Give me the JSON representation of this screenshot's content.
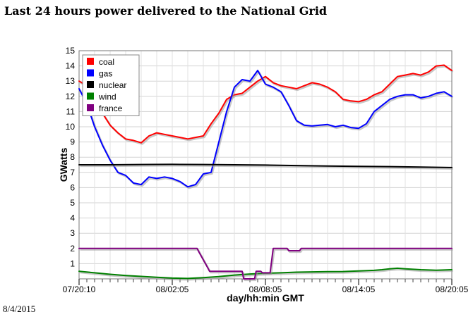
{
  "page": {
    "title": "Last 24 hours power delivered to the National Grid",
    "date": "8/4/2015"
  },
  "chart_data": {
    "type": "line",
    "title": "Last 24 hours power delivered to the National Grid",
    "xlabel": "day/hh:min GMT",
    "ylabel": "GWatts",
    "xlim": [
      0,
      24
    ],
    "ylim": [
      0,
      15
    ],
    "x_ticks": [
      {
        "x": 0,
        "label": "07/20:10"
      },
      {
        "x": 6,
        "label": "08/02:05"
      },
      {
        "x": 12,
        "label": "08/08:05"
      },
      {
        "x": 18,
        "label": "08/14:05"
      },
      {
        "x": 24,
        "label": "08/20:05"
      }
    ],
    "y_ticks": [
      1,
      2,
      3,
      4,
      5,
      6,
      7,
      8,
      9,
      10,
      11,
      12,
      13,
      14,
      15
    ],
    "grid": true,
    "legend_position": "top-left",
    "series": [
      {
        "name": "coal",
        "color": "#ff0000",
        "x": [
          0,
          0.5,
          1,
          1.5,
          2,
          2.5,
          3,
          3.5,
          4,
          4.5,
          5,
          5.5,
          6,
          6.5,
          7,
          7.5,
          8,
          8.5,
          9,
          9.5,
          10,
          10.5,
          11,
          11.5,
          12,
          12.5,
          13,
          13.5,
          14,
          14.5,
          15,
          15.5,
          16,
          16.5,
          17,
          17.5,
          18,
          18.5,
          19,
          19.5,
          20,
          20.5,
          21,
          21.5,
          22,
          22.5,
          23,
          23.5,
          24
        ],
        "values": [
          13.0,
          12.7,
          11.9,
          10.9,
          10.1,
          9.6,
          9.2,
          9.1,
          8.95,
          9.4,
          9.6,
          9.5,
          9.4,
          9.3,
          9.2,
          9.3,
          9.4,
          10.2,
          10.9,
          11.8,
          12.1,
          12.2,
          12.6,
          13.0,
          13.3,
          12.9,
          12.7,
          12.6,
          12.5,
          12.7,
          12.9,
          12.8,
          12.6,
          12.3,
          11.8,
          11.7,
          11.65,
          11.8,
          12.1,
          12.3,
          12.8,
          13.3,
          13.4,
          13.5,
          13.4,
          13.6,
          14.0,
          14.05,
          13.7
        ]
      },
      {
        "name": "gas",
        "color": "#0000ff",
        "x": [
          0,
          0.5,
          1,
          1.5,
          2,
          2.5,
          3,
          3.5,
          4,
          4.5,
          5,
          5.5,
          6,
          6.5,
          7,
          7.5,
          8,
          8.5,
          9,
          9.5,
          10,
          10.5,
          11,
          11.5,
          12,
          12.5,
          13,
          13.5,
          14,
          14.5,
          15,
          15.5,
          16,
          16.5,
          17,
          17.5,
          18,
          18.5,
          19,
          19.5,
          20,
          20.5,
          21,
          21.5,
          22,
          22.5,
          23,
          23.5,
          24
        ],
        "values": [
          12.5,
          11.5,
          10.0,
          8.8,
          7.8,
          7.0,
          6.8,
          6.3,
          6.2,
          6.7,
          6.6,
          6.7,
          6.6,
          6.4,
          6.05,
          6.2,
          6.9,
          7.0,
          9.0,
          11.0,
          12.6,
          13.1,
          13.0,
          13.7,
          12.8,
          12.6,
          12.3,
          11.4,
          10.4,
          10.1,
          10.05,
          10.1,
          10.15,
          10.0,
          10.1,
          9.95,
          9.9,
          10.2,
          11.0,
          11.4,
          11.8,
          12.0,
          12.1,
          12.1,
          11.9,
          12.0,
          12.2,
          12.3,
          12.0
        ]
      },
      {
        "name": "nuclear",
        "color": "#000000",
        "x": [
          0,
          2,
          4,
          6,
          8,
          10,
          12,
          14,
          16,
          18,
          20,
          22,
          24
        ],
        "values": [
          7.5,
          7.5,
          7.52,
          7.53,
          7.52,
          7.5,
          7.48,
          7.45,
          7.42,
          7.4,
          7.38,
          7.35,
          7.32
        ]
      },
      {
        "name": "wind",
        "color": "#008000",
        "x": [
          0,
          1,
          2,
          3,
          4,
          5,
          6,
          7,
          8,
          9,
          10,
          11,
          12,
          13,
          14,
          15,
          16,
          17,
          18,
          19,
          19.5,
          20,
          20.5,
          21,
          22,
          23,
          24
        ],
        "values": [
          0.5,
          0.4,
          0.3,
          0.22,
          0.16,
          0.1,
          0.05,
          0.03,
          0.08,
          0.15,
          0.25,
          0.32,
          0.37,
          0.4,
          0.44,
          0.46,
          0.47,
          0.48,
          0.52,
          0.56,
          0.6,
          0.66,
          0.7,
          0.66,
          0.6,
          0.57,
          0.6
        ]
      },
      {
        "name": "france",
        "color": "#800080",
        "x": [
          0,
          7.6,
          7.7,
          8.3,
          8.4,
          10.5,
          10.6,
          11.3,
          11.4,
          11.7,
          11.8,
          12.3,
          12.5,
          13.4,
          13.5,
          14.2,
          14.3,
          24
        ],
        "values": [
          2.0,
          2.0,
          1.8,
          0.7,
          0.5,
          0.5,
          0.0,
          0.0,
          0.5,
          0.5,
          0.4,
          0.4,
          2.0,
          2.0,
          1.85,
          1.85,
          2.0,
          2.0
        ]
      }
    ]
  }
}
